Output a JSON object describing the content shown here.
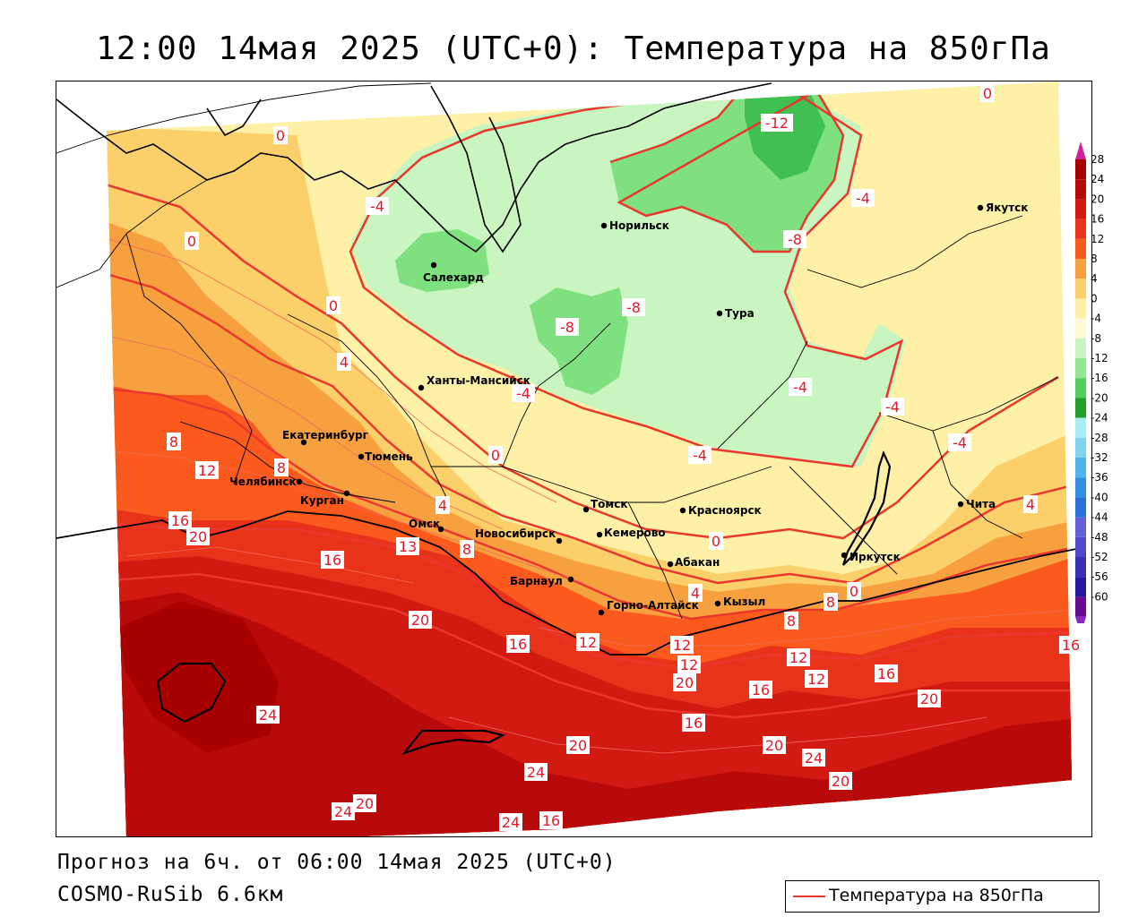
{
  "title": "12:00 14мая 2025 (UTC+0): Температура на 850гПа",
  "footer": {
    "forecast": "Прогноз на 6ч. от 06:00 14мая 2025 (UTC+0)",
    "model": "COSMO-RuSib 6.6км"
  },
  "legend": {
    "label": "Температура на 850гПа",
    "line_color": "#e8382e"
  },
  "colorbar": {
    "levels": [
      {
        "label": "28",
        "color": "#a80000"
      },
      {
        "label": "24",
        "color": "#b80a0a"
      },
      {
        "label": "20",
        "color": "#d21a12"
      },
      {
        "label": "16",
        "color": "#e8321a"
      },
      {
        "label": "12",
        "color": "#fa5a1e"
      },
      {
        "label": "8",
        "color": "#f7a040"
      },
      {
        "label": "4",
        "color": "#fbd06a"
      },
      {
        "label": "0",
        "color": "#fff0a8"
      },
      {
        "label": "-4",
        "color": "#fffbd4"
      },
      {
        "label": "-8",
        "color": "#c8f5c0"
      },
      {
        "label": "-12",
        "color": "#90e890"
      },
      {
        "label": "-16",
        "color": "#50d05a"
      },
      {
        "label": "-20",
        "color": "#20a028"
      },
      {
        "label": "-24",
        "color": "#a8ecf4"
      },
      {
        "label": "-28",
        "color": "#80d4f0"
      },
      {
        "label": "-32",
        "color": "#50b4ec"
      },
      {
        "label": "-36",
        "color": "#3090e0"
      },
      {
        "label": "-40",
        "color": "#2870d8"
      },
      {
        "label": "-44",
        "color": "#6060d8"
      },
      {
        "label": "-48",
        "color": "#5048c8"
      },
      {
        "label": "-52",
        "color": "#3830b0"
      },
      {
        "label": "-56",
        "color": "#2818a0"
      },
      {
        "label": "-60",
        "color": "#6a0a90"
      }
    ],
    "top_arrow_color": "#d0209a",
    "bottom_arrow_color": "#8a2ac0"
  },
  "cities": [
    {
      "name": "Салехард"
    },
    {
      "name": "Норильск"
    },
    {
      "name": "Якутск"
    },
    {
      "name": "Тура"
    },
    {
      "name": "Ханты-Мансийск"
    },
    {
      "name": "Екатеринбург"
    },
    {
      "name": "Тюмень"
    },
    {
      "name": "Челябинск"
    },
    {
      "name": "Курган"
    },
    {
      "name": "Омск"
    },
    {
      "name": "Новосибирск"
    },
    {
      "name": "Томск"
    },
    {
      "name": "Кемерово"
    },
    {
      "name": "Красноярск"
    },
    {
      "name": "Абакан"
    },
    {
      "name": "Барнаул"
    },
    {
      "name": "Горно-Алтайск"
    },
    {
      "name": "Кызыл"
    },
    {
      "name": "Иркутск"
    },
    {
      "name": "Чита"
    }
  ],
  "isotherm_labels": [
    "0",
    "0",
    "0",
    "-4",
    "-12",
    "-4",
    "-8",
    "-8",
    "-8",
    "0",
    "4",
    "-4",
    "-4",
    "-4",
    "-4",
    "8",
    "8",
    "12",
    "-4",
    "0",
    "0",
    "4",
    "4",
    "16",
    "20",
    "13",
    "16",
    "8",
    "20",
    "16",
    "12",
    "4",
    "8",
    "12",
    "8",
    "12",
    "20",
    "16",
    "12",
    "12",
    "16",
    "20",
    "24",
    "16",
    "20",
    "20",
    "24",
    "24",
    "20",
    "24",
    "20",
    "24",
    "16",
    "16",
    "0"
  ]
}
